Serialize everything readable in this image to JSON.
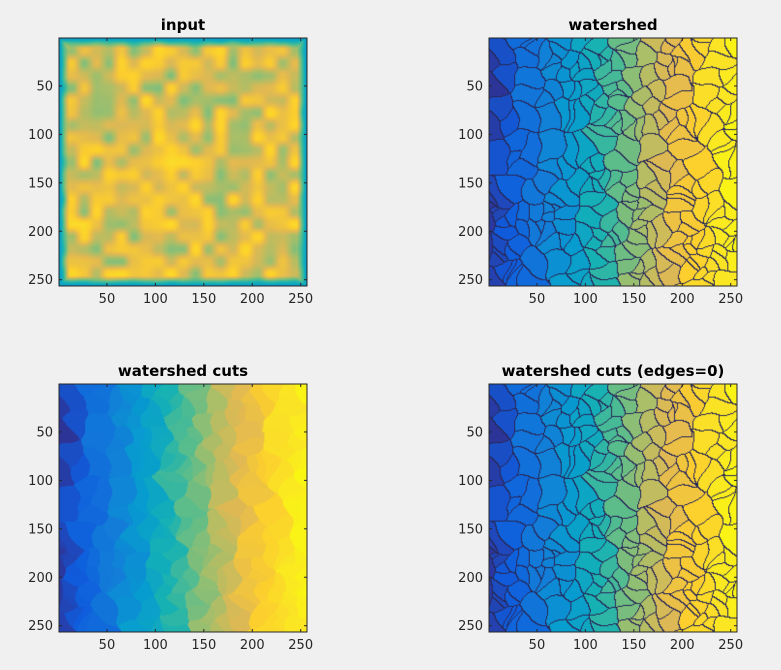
{
  "figure": {
    "background": "#f0f0f0"
  },
  "chart_data": [
    {
      "type": "heatmap",
      "title": "input",
      "xlim": [
        0.5,
        256.5
      ],
      "ylim": [
        256.5,
        0.5
      ],
      "xticks": [
        50,
        100,
        150,
        200,
        250
      ],
      "yticks": [
        50,
        100,
        150,
        200,
        250
      ],
      "colormap": "parula",
      "content": "smooth-noise"
    },
    {
      "type": "heatmap",
      "title": "watershed",
      "xlim": [
        0.5,
        256.5
      ],
      "ylim": [
        256.5,
        0.5
      ],
      "xticks": [
        50,
        100,
        150,
        200,
        250
      ],
      "yticks": [
        50,
        100,
        150,
        200,
        250
      ],
      "colormap": "parula",
      "content": "labels-with-edges"
    },
    {
      "type": "heatmap",
      "title": "watershed cuts",
      "xlim": [
        0.5,
        256.5
      ],
      "ylim": [
        256.5,
        0.5
      ],
      "xticks": [
        50,
        100,
        150,
        200,
        250
      ],
      "yticks": [
        50,
        100,
        150,
        200,
        250
      ],
      "colormap": "parula",
      "content": "labels"
    },
    {
      "type": "heatmap",
      "title": "watershed cuts (edges=0)",
      "xlim": [
        0.5,
        256.5
      ],
      "ylim": [
        256.5,
        0.5
      ],
      "xticks": [
        50,
        100,
        150,
        200,
        250
      ],
      "yticks": [
        50,
        100,
        150,
        200,
        250
      ],
      "colormap": "parula",
      "content": "labels-with-edges"
    }
  ]
}
